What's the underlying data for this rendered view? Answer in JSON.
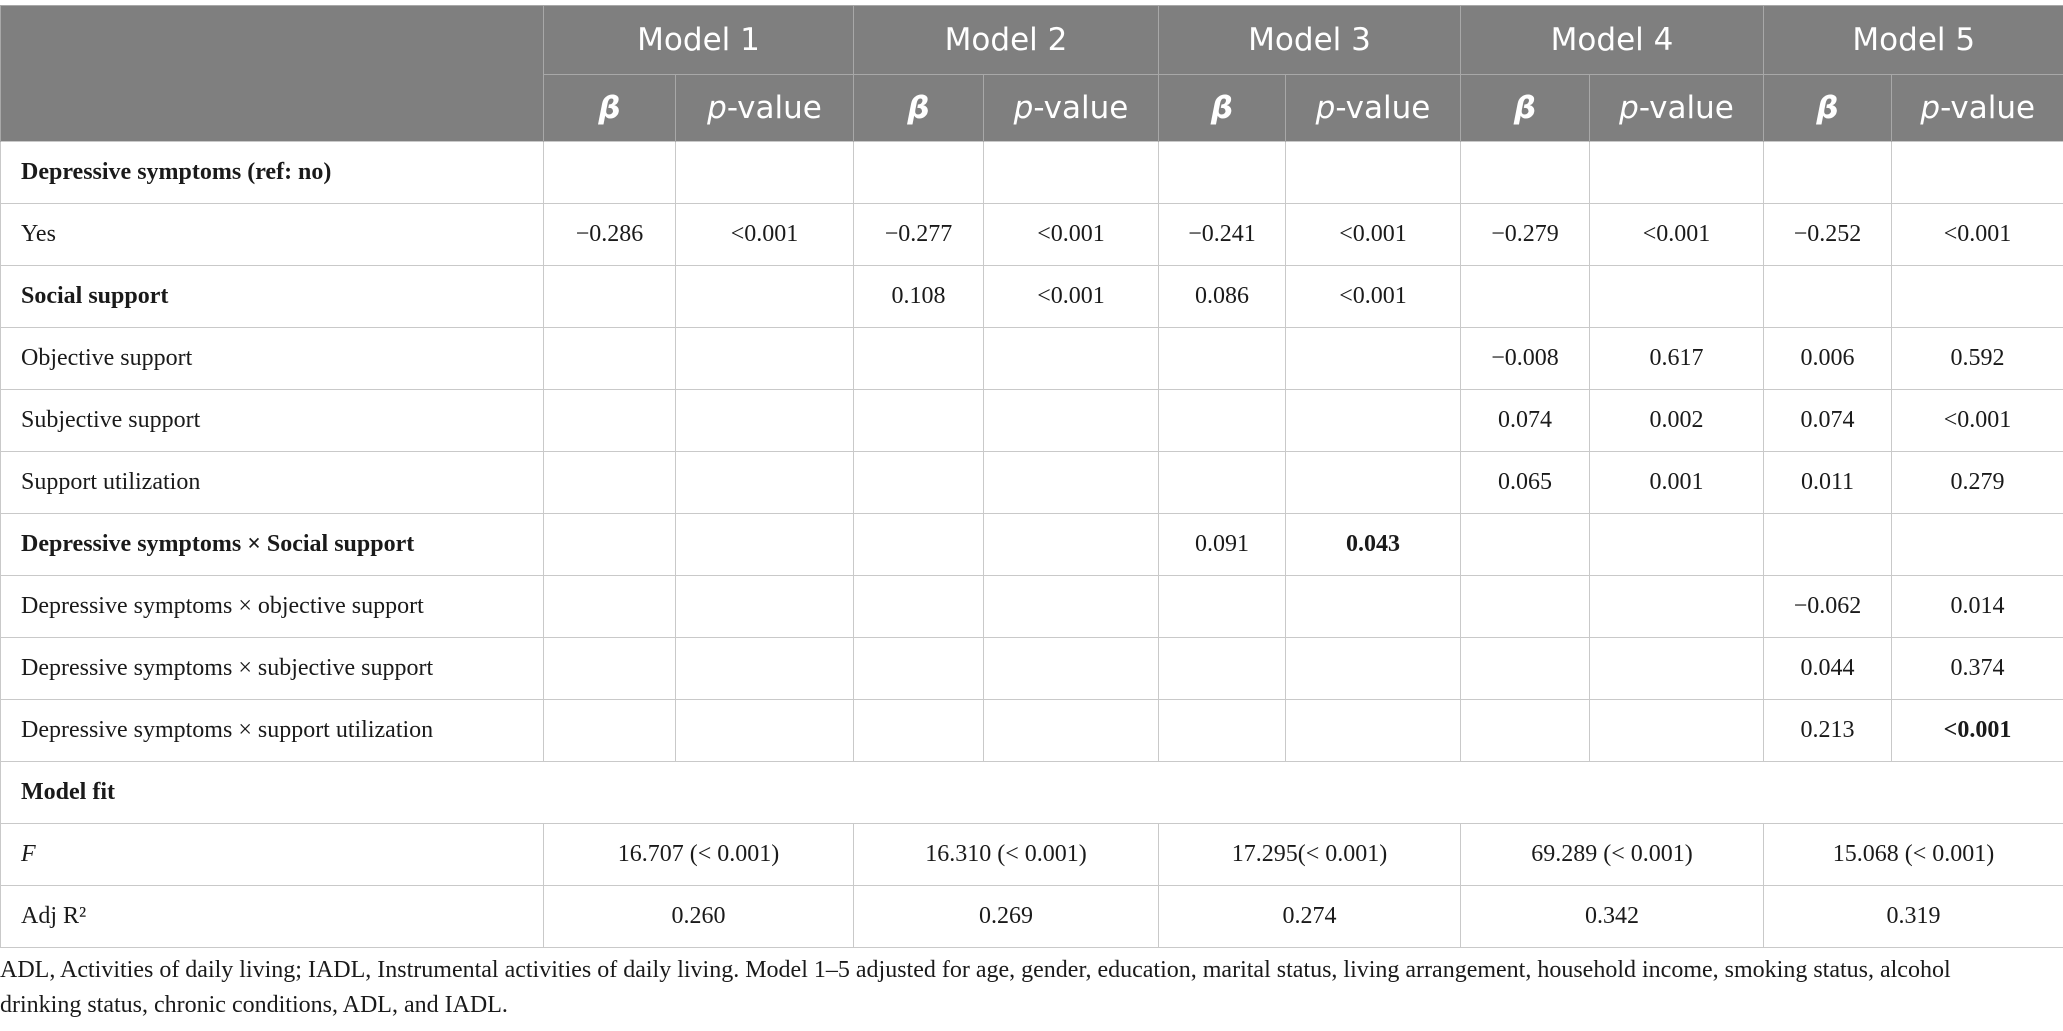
{
  "table": {
    "models": [
      "Model 1",
      "Model 2",
      "Model 3",
      "Model 4",
      "Model 5"
    ],
    "subheaders": [
      [
        "β",
        "p-value"
      ],
      [
        "β",
        "p-value"
      ],
      [
        "β",
        "p-value"
      ],
      [
        "β",
        "p-value"
      ],
      [
        "β",
        "p-value"
      ]
    ],
    "rows": [
      {
        "label": "Depressive symptoms (ref: no)",
        "bold": true,
        "cells": [
          null,
          null,
          null,
          null,
          null,
          null,
          null,
          null,
          null,
          null
        ]
      },
      {
        "label": "Yes",
        "cells": [
          "−0.286",
          "<0.001",
          "−0.277",
          "<0.001",
          "−0.241",
          "<0.001",
          "−0.279",
          "<0.001",
          "−0.252",
          "<0.001"
        ]
      },
      {
        "label": "Social support",
        "bold": true,
        "cells": [
          null,
          null,
          "0.108",
          "<0.001",
          "0.086",
          "<0.001",
          null,
          null,
          null,
          null
        ]
      },
      {
        "label": "Objective support",
        "cells": [
          null,
          null,
          null,
          null,
          null,
          null,
          "−0.008",
          "0.617",
          "0.006",
          "0.592"
        ]
      },
      {
        "label": "Subjective support",
        "cells": [
          null,
          null,
          null,
          null,
          null,
          null,
          "0.074",
          "0.002",
          "0.074",
          "<0.001"
        ]
      },
      {
        "label": "Support utilization",
        "cells": [
          null,
          null,
          null,
          null,
          null,
          null,
          "0.065",
          "0.001",
          "0.011",
          "0.279"
        ]
      },
      {
        "label": "Depressive symptoms × Social support",
        "bold": true,
        "cells": [
          null,
          null,
          null,
          null,
          "0.091",
          "0.043",
          null,
          null,
          null,
          null
        ],
        "bold_cells": [
          5
        ]
      },
      {
        "label": "Depressive symptoms × objective support",
        "cells": [
          null,
          null,
          null,
          null,
          null,
          null,
          null,
          null,
          "−0.062",
          "0.014"
        ]
      },
      {
        "label": "Depressive symptoms × subjective support",
        "cells": [
          null,
          null,
          null,
          null,
          null,
          null,
          null,
          null,
          "0.044",
          "0.374"
        ]
      },
      {
        "label": "Depressive symptoms × support utilization",
        "cells": [
          null,
          null,
          null,
          null,
          null,
          null,
          null,
          null,
          "0.213",
          "<0.001"
        ],
        "bold_cells": [
          9
        ]
      },
      {
        "label": "Model fit",
        "bold": true
      },
      {
        "label": "F",
        "italic": true,
        "fit": [
          "16.707 (< 0.001)",
          "16.310 (< 0.001)",
          "17.295(< 0.001)",
          "69.289 (< 0.001)",
          "15.068 (< 0.001)"
        ]
      },
      {
        "label": "Adj R²",
        "fit": [
          "0.260",
          "0.269",
          "0.274",
          "0.342",
          "0.319"
        ]
      }
    ],
    "footnote": "ADL, Activities of daily living; IADL, Instrumental activities of daily living. Model 1–5 adjusted for age, gender, education, marital status, living arrangement, household income, smoking status, alcohol drinking status, chronic conditions, ADL, and IADL."
  }
}
